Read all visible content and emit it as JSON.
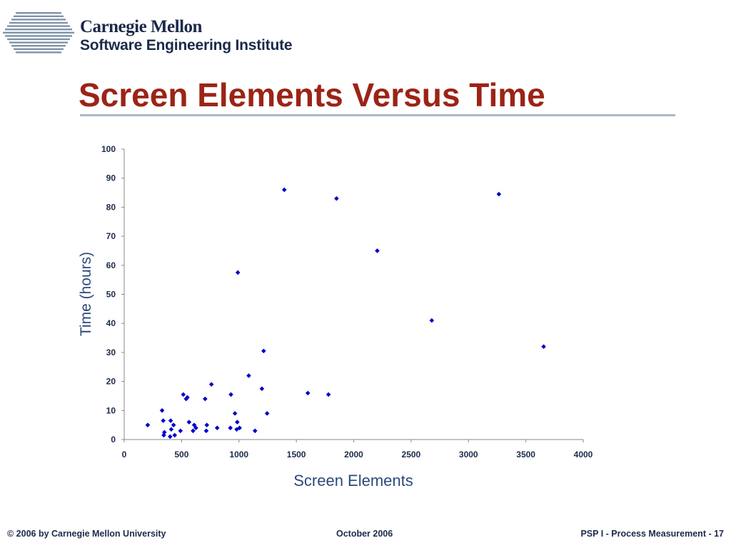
{
  "logo": {
    "line1": "Carnegie Mellon",
    "line2": "Software Engineering Institute",
    "color": "#1c2a4a",
    "stripe_color": "#7f93a8"
  },
  "slide": {
    "title": "Screen Elements Versus Time",
    "title_color": "#9b2416",
    "rule_color": "#a8b9cc"
  },
  "chart_data": {
    "type": "scatter",
    "xlabel": "Screen Elements",
    "ylabel": "Time (hours)",
    "xlim": [
      0,
      4000
    ],
    "ylim": [
      0,
      100
    ],
    "xticks": [
      0,
      500,
      1000,
      1500,
      2000,
      2500,
      3000,
      3500,
      4000
    ],
    "yticks": [
      0,
      10,
      20,
      30,
      40,
      50,
      60,
      70,
      80,
      90,
      100
    ],
    "grid": false,
    "legend": "none",
    "marker_color": "#0000cc",
    "axis_label_color": "#2c4a7a",
    "points": [
      [
        205,
        5
      ],
      [
        330,
        10
      ],
      [
        340,
        6.5
      ],
      [
        345,
        1.5
      ],
      [
        350,
        2.5
      ],
      [
        400,
        1
      ],
      [
        405,
        6.5
      ],
      [
        410,
        3.5
      ],
      [
        430,
        5
      ],
      [
        440,
        1.5
      ],
      [
        490,
        3
      ],
      [
        515,
        15.5
      ],
      [
        540,
        14
      ],
      [
        550,
        14.5
      ],
      [
        565,
        6
      ],
      [
        600,
        3
      ],
      [
        610,
        5
      ],
      [
        625,
        4
      ],
      [
        705,
        14
      ],
      [
        715,
        3
      ],
      [
        720,
        5
      ],
      [
        760,
        19
      ],
      [
        810,
        4
      ],
      [
        925,
        4
      ],
      [
        930,
        15.5
      ],
      [
        965,
        9
      ],
      [
        980,
        3.5
      ],
      [
        985,
        6
      ],
      [
        990,
        57.5
      ],
      [
        1005,
        4
      ],
      [
        1085,
        22
      ],
      [
        1140,
        3
      ],
      [
        1200,
        17.5
      ],
      [
        1215,
        30.5
      ],
      [
        1245,
        9
      ],
      [
        1395,
        86
      ],
      [
        1600,
        16
      ],
      [
        1780,
        15.5
      ],
      [
        1850,
        83
      ],
      [
        2205,
        65
      ],
      [
        2680,
        41
      ],
      [
        3265,
        84.5
      ],
      [
        3655,
        32
      ]
    ]
  },
  "footer": {
    "left": "© 2006 by Carnegie Mellon University",
    "middle": "October 2006",
    "right": "PSP I - Process Measurement - 17"
  }
}
